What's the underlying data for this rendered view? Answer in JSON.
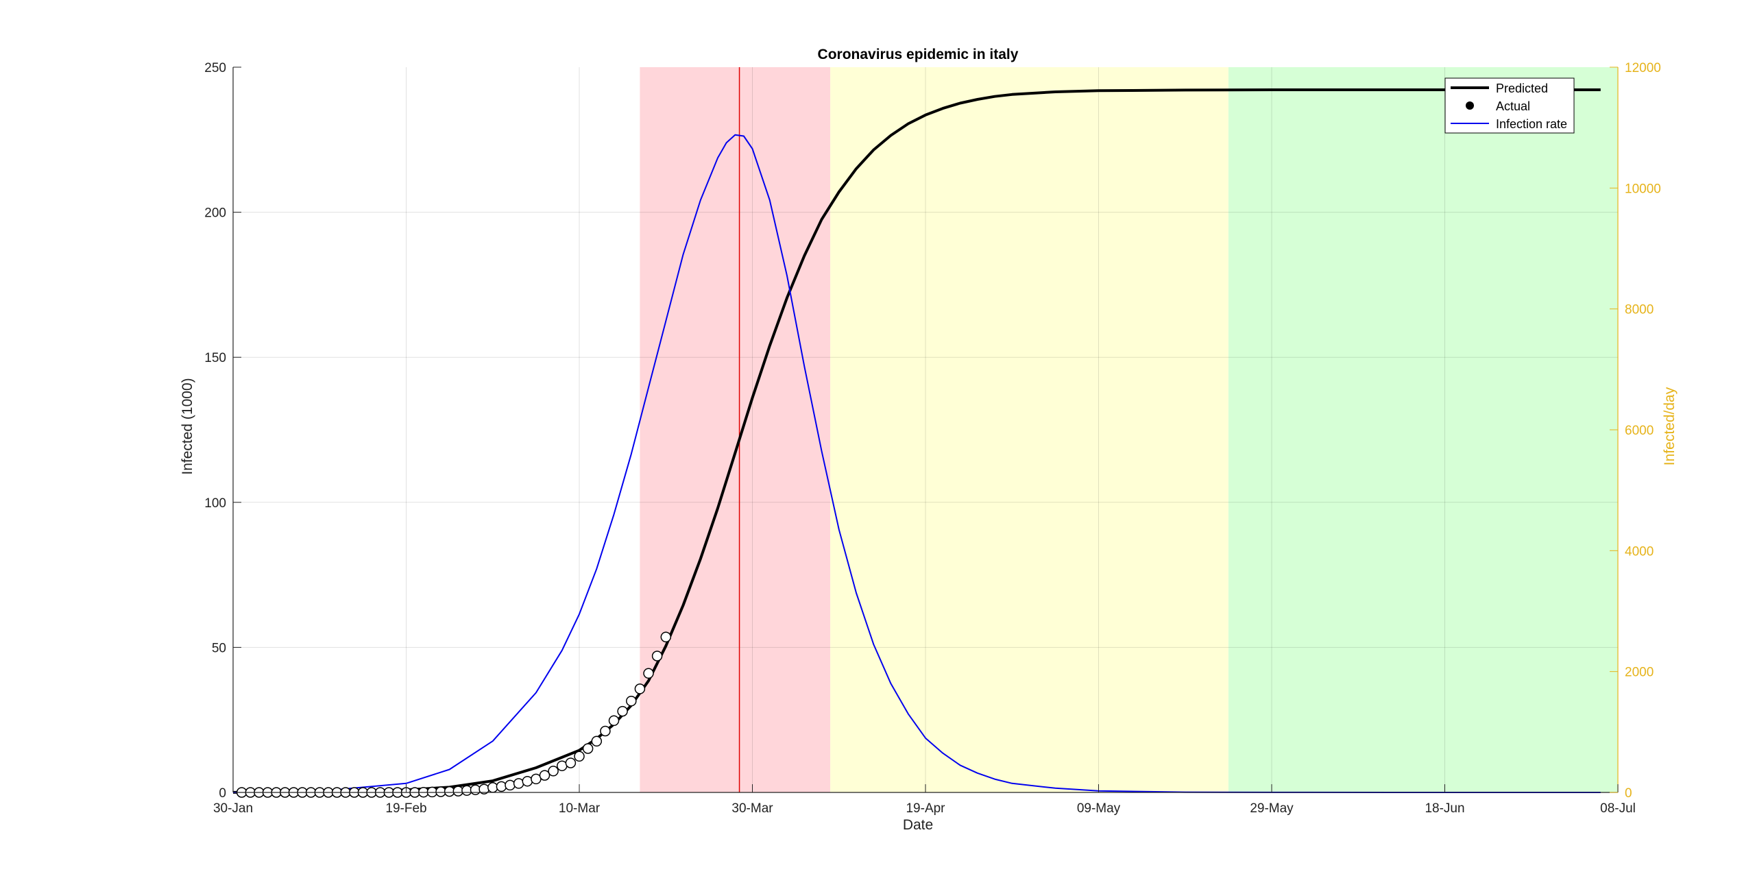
{
  "chart_data": {
    "type": "line",
    "title": "Coronavirus epidemic in italy",
    "xlabel": "Date",
    "ylabel": "Infected (1000)",
    "y2label": "Infected/day",
    "x_range": [
      0,
      160
    ],
    "x_ticks": [
      {
        "day": 0,
        "label": "30-Jan"
      },
      {
        "day": 20,
        "label": "19-Feb"
      },
      {
        "day": 40,
        "label": "10-Mar"
      },
      {
        "day": 60,
        "label": "30-Mar"
      },
      {
        "day": 80,
        "label": "19-Apr"
      },
      {
        "day": 100,
        "label": "09-May"
      },
      {
        "day": 120,
        "label": "29-May"
      },
      {
        "day": 140,
        "label": "18-Jun"
      },
      {
        "day": 160,
        "label": "08-Jul"
      }
    ],
    "ylim": [
      0,
      250
    ],
    "y_ticks": [
      0,
      50,
      100,
      150,
      200,
      250
    ],
    "y2lim": [
      0,
      12000
    ],
    "y2_ticks": [
      0,
      2000,
      4000,
      6000,
      8000,
      10000,
      12000
    ],
    "grid": true,
    "legend_position": "top-right",
    "colors": {
      "predicted": "#000000",
      "actual_edge": "#000000",
      "actual_fill": "#ffffff",
      "rate": "#0000ee",
      "right_axis": "#e6b31a",
      "peak_line": "#e00000",
      "phase_red": "#ffd6da",
      "phase_yellow": "#ffffd6",
      "phase_green": "#d6ffd6"
    },
    "phases": [
      {
        "start_day": 47,
        "end_day": 69,
        "color": "#ffd6da"
      },
      {
        "start_day": 69,
        "end_day": 115,
        "color": "#ffffd6"
      },
      {
        "start_day": 115,
        "end_day": 160,
        "color": "#d6ffd6"
      }
    ],
    "peak_day": 58.5,
    "series": [
      {
        "name": "Predicted",
        "axis": "left",
        "style": "line",
        "x": [
          0,
          10,
          20,
          25,
          30,
          35,
          40,
          42,
          44,
          46,
          48,
          50,
          52,
          54,
          56,
          58,
          60,
          62,
          64,
          66,
          68,
          70,
          72,
          74,
          76,
          78,
          80,
          82,
          84,
          86,
          88,
          90,
          95,
          100,
          110,
          120,
          130,
          140,
          150,
          158
        ],
        "values": [
          0.02,
          0.12,
          0.9,
          1.8,
          4.0,
          8.5,
          14.5,
          18.5,
          23.5,
          30.0,
          38.5,
          50.5,
          64.5,
          80.5,
          98.0,
          117.0,
          136.0,
          154.0,
          170.5,
          185.0,
          197.5,
          207.0,
          215.0,
          221.5,
          226.5,
          230.5,
          233.5,
          235.8,
          237.6,
          238.9,
          239.9,
          240.6,
          241.5,
          241.9,
          242.1,
          242.2,
          242.2,
          242.2,
          242.2,
          242.2
        ]
      },
      {
        "name": "Actual",
        "axis": "left",
        "style": "markers",
        "x": [
          1,
          2,
          3,
          4,
          5,
          6,
          7,
          8,
          9,
          10,
          11,
          12,
          13,
          14,
          15,
          16,
          17,
          18,
          19,
          20,
          21,
          22,
          23,
          24,
          25,
          26,
          27,
          28,
          29,
          30,
          31,
          32,
          33,
          34,
          35,
          36,
          37,
          38,
          39,
          40,
          41,
          42,
          43,
          44,
          45,
          46,
          47,
          48,
          49,
          50
        ],
        "values": [
          0.002,
          0.002,
          0.002,
          0.002,
          0.002,
          0.002,
          0.002,
          0.002,
          0.003,
          0.003,
          0.003,
          0.003,
          0.003,
          0.003,
          0.003,
          0.003,
          0.003,
          0.003,
          0.003,
          0.003,
          0.003,
          0.076,
          0.152,
          0.229,
          0.322,
          0.453,
          0.655,
          0.888,
          1.128,
          1.694,
          2.036,
          2.502,
          3.089,
          3.858,
          4.636,
          5.883,
          7.375,
          9.172,
          10.149,
          12.462,
          15.113,
          17.66,
          21.157,
          24.747,
          27.98,
          31.506,
          35.713,
          41.035,
          47.021,
          53.578
        ]
      },
      {
        "name": "Infection rate",
        "axis": "right",
        "style": "line",
        "x": [
          0,
          10,
          20,
          25,
          30,
          35,
          38,
          40,
          42,
          44,
          46,
          48,
          50,
          52,
          54,
          56,
          57,
          58,
          59,
          60,
          62,
          64,
          66,
          68,
          70,
          72,
          74,
          76,
          78,
          80,
          82,
          84,
          86,
          88,
          90,
          95,
          100,
          110,
          120,
          140,
          158
        ],
        "values": [
          0,
          20,
          150,
          380,
          850,
          1650,
          2350,
          2950,
          3700,
          4600,
          5600,
          6700,
          7800,
          8900,
          9800,
          10500,
          10750,
          10880,
          10860,
          10650,
          9800,
          8550,
          7050,
          5650,
          4350,
          3300,
          2450,
          1800,
          1300,
          900,
          650,
          450,
          320,
          220,
          150,
          70,
          25,
          5,
          1,
          0,
          0
        ]
      }
    ]
  }
}
